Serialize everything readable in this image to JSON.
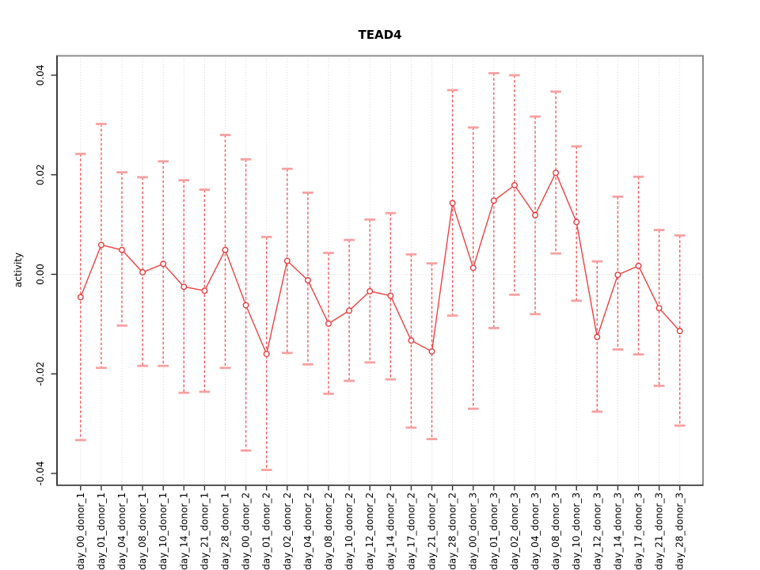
{
  "window": {
    "title": "TEAD4"
  },
  "chart_data": {
    "type": "line",
    "title": "TEAD4",
    "xlabel": "",
    "ylabel": "activity",
    "ylim": [
      -0.0424,
      0.044
    ],
    "y_ticks": [
      0.04,
      0.02,
      0,
      -0.02,
      -0.04
    ],
    "y_tick_labels": [
      "0.04",
      "0.02",
      "0.00",
      "-0.02",
      "-0.04"
    ],
    "grid": "vertical dotted gridline per category, dotted horizontal line at y=0",
    "legend": "none",
    "marker": "open-circle",
    "error_bars": "asymmetric, dashed stems with flat caps",
    "colors": {
      "line": "#EC4141",
      "point": "#E93C3C",
      "error_bar": "#F15C5C",
      "error_cap": "#F9A0A0",
      "grid": "#D6D6D6",
      "border": "#8C8C8C",
      "axis": "#3C3C3C",
      "tick": "#2E2E2E"
    },
    "categories": [
      "day_00_donor_1",
      "day_01_donor_1",
      "day_04_donor_1",
      "day_08_donor_1",
      "day_10_donor_1",
      "day_14_donor_1",
      "day_21_donor_1",
      "day_28_donor_1",
      "day_00_donor_2",
      "day_01_donor_2",
      "day_02_donor_2",
      "day_04_donor_2",
      "day_08_donor_2",
      "day_10_donor_2",
      "day_12_donor_2",
      "day_14_donor_2",
      "day_17_donor_2",
      "day_21_donor_2",
      "day_28_donor_2",
      "day_00_donor_3",
      "day_01_donor_3",
      "day_02_donor_3",
      "day_04_donor_3",
      "day_08_donor_3",
      "day_10_donor_3",
      "day_12_donor_3",
      "day_14_donor_3",
      "day_17_donor_3",
      "day_21_donor_3",
      "day_28_donor_3"
    ],
    "series": [
      {
        "name": "activity",
        "values": [
          -0.0046,
          0.0059,
          0.0049,
          0.0004,
          0.0021,
          -0.0025,
          -0.0033,
          0.0049,
          -0.0062,
          -0.016,
          0.0027,
          -0.0012,
          -0.0099,
          -0.0073,
          -0.0034,
          -0.0043,
          -0.0133,
          -0.0155,
          0.0143,
          0.0013,
          0.0148,
          0.0179,
          0.0119,
          0.0204,
          0.0105,
          -0.0126,
          -0.0001,
          0.0017,
          -0.0068,
          -0.0114
        ],
        "err_high": [
          0.0242,
          0.0302,
          0.0205,
          0.0195,
          0.0227,
          0.0189,
          0.017,
          0.028,
          0.0231,
          0.0075,
          0.0212,
          0.0164,
          0.0043,
          0.0069,
          0.011,
          0.0123,
          0.004,
          0.0022,
          0.037,
          0.0295,
          0.0404,
          0.04,
          0.0317,
          0.0367,
          0.0257,
          0.0026,
          0.0156,
          0.0196,
          0.0089,
          0.0078
        ],
        "err_low": [
          -0.0333,
          -0.0188,
          -0.0103,
          -0.0184,
          -0.0184,
          -0.0238,
          -0.0236,
          -0.0188,
          -0.0354,
          -0.0393,
          -0.0158,
          -0.0181,
          -0.024,
          -0.0214,
          -0.0177,
          -0.0211,
          -0.0308,
          -0.0331,
          -0.0083,
          -0.027,
          -0.0108,
          -0.0041,
          -0.008,
          0.0042,
          -0.0053,
          -0.0276,
          -0.0151,
          -0.0161,
          -0.0224,
          -0.0304
        ]
      }
    ]
  }
}
